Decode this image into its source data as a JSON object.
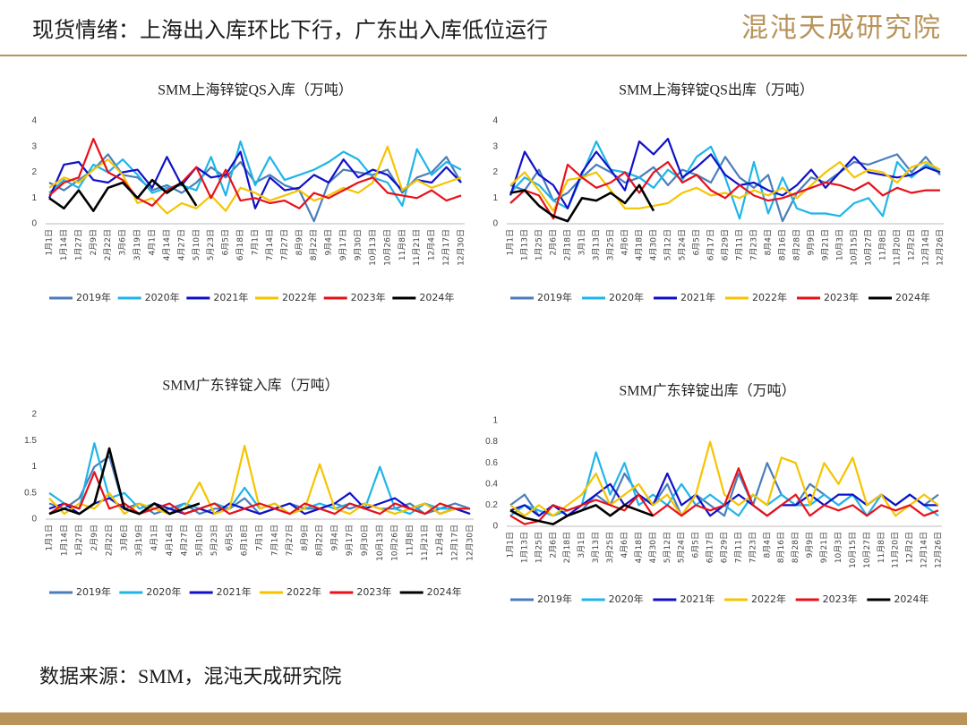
{
  "header": {
    "title": "现货情绪：上海出入库环比下行，广东出入库低位运行",
    "logo": "混沌天成研究院"
  },
  "source": "数据来源：SMM，混沌天成研究院",
  "chart_data": [
    {
      "type": "line",
      "title": "SMM上海锌锭QS入库（万吨）",
      "categories": [
        "1月1日",
        "1月14日",
        "1月27日",
        "2月9日",
        "2月22日",
        "3月6日",
        "3月19日",
        "4月1日",
        "4月14日",
        "4月27日",
        "5月10日",
        "5月23日",
        "6月5日",
        "6月18日",
        "7月1日",
        "7月14日",
        "7月27日",
        "8月9日",
        "8月22日",
        "9月4日",
        "9月17日",
        "9月30日",
        "10月13日",
        "10月26日",
        "11月8日",
        "11月21日",
        "12月4日",
        "12月17日",
        "12月30日"
      ],
      "ylim": [
        0,
        4
      ],
      "yticks": [
        0,
        1,
        2,
        3,
        4
      ],
      "series": [
        {
          "name": "2019年",
          "color": "#4a7ebb",
          "values": [
            1.6,
            1.3,
            1.7,
            2.1,
            2.7,
            1.9,
            1.8,
            1.3,
            1.5,
            1.2,
            1.6,
            2.2,
            1.8,
            2.4,
            1.6,
            1.9,
            1.5,
            1.3,
            0.1,
            1.6,
            2.1,
            2.0,
            1.9,
            2.1,
            1.2,
            1.8,
            2.0,
            2.6,
            1.6
          ]
        },
        {
          "name": "2020年",
          "color": "#1fb5e8",
          "values": [
            1.2,
            1.7,
            1.4,
            2.3,
            2.0,
            2.5,
            1.9,
            1.2,
            1.4,
            1.5,
            1.3,
            2.6,
            1.1,
            3.2,
            1.5,
            2.6,
            1.7,
            1.9,
            2.1,
            2.4,
            2.8,
            2.5,
            1.8,
            1.6,
            0.7,
            2.9,
            1.9,
            2.4,
            2.1
          ]
        },
        {
          "name": "2021年",
          "color": "#1010c8",
          "values": [
            1.0,
            2.3,
            2.4,
            1.7,
            1.6,
            2.0,
            2.1,
            1.4,
            2.6,
            1.5,
            2.2,
            1.8,
            1.9,
            2.8,
            0.6,
            1.8,
            1.3,
            1.4,
            1.9,
            1.6,
            2.5,
            1.8,
            2.1,
            1.9,
            1.3,
            1.7,
            1.6,
            2.2,
            1.6
          ]
        },
        {
          "name": "2022年",
          "color": "#f5c400",
          "values": [
            1.4,
            1.8,
            1.6,
            2.1,
            2.5,
            1.9,
            0.8,
            1.0,
            0.4,
            0.8,
            0.6,
            1.1,
            0.5,
            1.4,
            1.2,
            0.9,
            1.1,
            1.3,
            0.9,
            1.1,
            1.4,
            1.2,
            1.6,
            3.0,
            1.3,
            1.7,
            1.4,
            1.6,
            1.8
          ]
        },
        {
          "name": "2023年",
          "color": "#e8101a",
          "values": [
            1.1,
            1.6,
            1.8,
            3.3,
            2.0,
            1.7,
            1.0,
            0.7,
            1.3,
            1.6,
            2.2,
            1.0,
            2.1,
            0.9,
            1.0,
            0.8,
            0.9,
            0.6,
            1.2,
            1.0,
            1.3,
            1.6,
            1.8,
            1.2,
            1.1,
            1.0,
            1.3,
            0.9,
            1.1
          ]
        },
        {
          "name": "2024年",
          "color": "#000000",
          "values": [
            1.0,
            0.6,
            1.3,
            0.5,
            1.4,
            1.6,
            1.0,
            1.7,
            1.2,
            1.6,
            0.7,
            null,
            null,
            null,
            null,
            null,
            null,
            null,
            null,
            null,
            null,
            null,
            null,
            null,
            null,
            null,
            null,
            null,
            null
          ]
        }
      ]
    },
    {
      "type": "line",
      "title": "SMM上海锌锭QS出库（万吨）",
      "categories": [
        "1月1日",
        "1月13日",
        "1月25日",
        "2月6日",
        "2月18日",
        "3月1日",
        "3月13日",
        "3月25日",
        "4月6日",
        "4月18日",
        "4月30日",
        "5月12日",
        "5月24日",
        "6月5日",
        "6月17日",
        "6月29日",
        "7月11日",
        "7月23日",
        "8月4日",
        "8月16日",
        "8月28日",
        "9月9日",
        "9月21日",
        "10月3日",
        "10月15日",
        "10月27日",
        "11月8日",
        "11月20日",
        "12月2日",
        "12月14日",
        "12月26日"
      ],
      "ylim": [
        0,
        4
      ],
      "yticks": [
        0,
        1,
        2,
        3,
        4
      ],
      "series": [
        {
          "name": "2019年",
          "color": "#4a7ebb",
          "values": [
            1.5,
            1.3,
            2.1,
            0.9,
            1.2,
            1.8,
            2.3,
            2.0,
            1.6,
            1.8,
            2.2,
            1.5,
            2.1,
            1.9,
            1.6,
            2.6,
            1.8,
            1.4,
            1.9,
            0.1,
            1.2,
            1.8,
            1.6,
            2.0,
            2.4,
            2.3,
            2.5,
            2.7,
            2.0,
            2.6,
            1.9
          ]
        },
        {
          "name": "2020年",
          "color": "#1fb5e8",
          "values": [
            1.2,
            1.8,
            1.5,
            0.9,
            0.6,
            1.9,
            3.2,
            2.1,
            2.0,
            1.8,
            1.4,
            2.1,
            1.7,
            2.6,
            3.0,
            1.8,
            0.2,
            2.4,
            0.4,
            1.8,
            0.6,
            0.4,
            0.4,
            0.3,
            0.8,
            1.0,
            0.3,
            2.4,
            1.8,
            2.3,
            2.0
          ]
        },
        {
          "name": "2021年",
          "color": "#1010c8",
          "values": [
            1.1,
            2.8,
            1.9,
            1.5,
            0.6,
            2.0,
            2.8,
            2.1,
            1.3,
            3.2,
            2.7,
            3.3,
            1.8,
            2.2,
            2.7,
            1.9,
            1.5,
            1.6,
            1.3,
            1.1,
            1.5,
            2.1,
            1.4,
            2.0,
            2.6,
            2.0,
            1.9,
            1.8,
            1.9,
            2.2,
            2.0
          ]
        },
        {
          "name": "2022年",
          "color": "#f5c400",
          "values": [
            1.5,
            2.0,
            1.3,
            0.5,
            1.7,
            1.8,
            2.0,
            1.3,
            0.6,
            0.6,
            0.7,
            0.8,
            1.2,
            1.4,
            1.1,
            1.2,
            1.0,
            1.3,
            1.1,
            1.4,
            1.0,
            1.5,
            2.0,
            2.4,
            1.8,
            2.1,
            2.0,
            1.6,
            2.2,
            2.4,
            2.1
          ]
        },
        {
          "name": "2023年",
          "color": "#e8101a",
          "values": [
            0.8,
            1.3,
            1.1,
            0.2,
            2.3,
            1.8,
            1.4,
            1.6,
            2.0,
            1.2,
            2.0,
            2.4,
            1.6,
            1.9,
            1.3,
            1.0,
            1.5,
            1.1,
            0.9,
            1.0,
            1.2,
            1.4,
            1.6,
            1.5,
            1.3,
            1.6,
            1.1,
            1.4,
            1.2,
            1.3,
            1.3
          ]
        },
        {
          "name": "2024年",
          "color": "#000000",
          "values": [
            1.2,
            1.3,
            0.7,
            0.3,
            0.1,
            1.0,
            0.9,
            1.2,
            0.8,
            1.5,
            0.5,
            null,
            null,
            null,
            null,
            null,
            null,
            null,
            null,
            null,
            null,
            null,
            null,
            null,
            null,
            null,
            null,
            null,
            null,
            null,
            null
          ]
        }
      ]
    },
    {
      "type": "line",
      "title": "SMM广东锌锭入库（万吨）",
      "categories": [
        "1月1日",
        "1月14日",
        "1月27日",
        "2月9日",
        "2月22日",
        "3月6日",
        "3月19日",
        "4月1日",
        "4月14日",
        "4月27日",
        "5月10日",
        "5月23日",
        "6月5日",
        "6月18日",
        "7月1日",
        "7月14日",
        "7月27日",
        "8月9日",
        "8月22日",
        "9月4日",
        "9月17日",
        "9月30日",
        "10月13日",
        "10月26日",
        "11月8日",
        "11月21日",
        "12月4日",
        "12月17日",
        "12月30日"
      ],
      "ylim": [
        0,
        2
      ],
      "yticks": [
        0,
        0.5,
        1,
        1.5,
        2
      ],
      "series": [
        {
          "name": "2019年",
          "color": "#4a7ebb",
          "values": [
            0.3,
            0.2,
            0.4,
            1.0,
            1.2,
            0.2,
            0.3,
            0.1,
            0.2,
            0.3,
            0.1,
            0.2,
            0.2,
            0.4,
            0.1,
            0.2,
            0.3,
            0.2,
            0.2,
            0.3,
            0.2,
            0.3,
            0.2,
            0.2,
            0.3,
            0.1,
            0.2,
            0.3,
            0.2
          ]
        },
        {
          "name": "2020年",
          "color": "#1fb5e8",
          "values": [
            0.5,
            0.3,
            0.2,
            1.45,
            0.4,
            0.5,
            0.2,
            0.3,
            0.1,
            0.3,
            0.2,
            0.3,
            0.2,
            0.6,
            0.2,
            0.3,
            0.1,
            0.2,
            0.3,
            0.2,
            0.3,
            0.2,
            1.0,
            0.2,
            0.1,
            0.3,
            0.2,
            0.2,
            0.1
          ]
        },
        {
          "name": "2021年",
          "color": "#1010c8",
          "values": [
            0.2,
            0.3,
            0.1,
            0.3,
            0.4,
            0.2,
            0.1,
            0.3,
            0.2,
            0.1,
            0.2,
            0.1,
            0.3,
            0.2,
            0.1,
            0.2,
            0.3,
            0.1,
            0.2,
            0.3,
            0.5,
            0.2,
            0.3,
            0.4,
            0.2,
            0.3,
            0.1,
            0.2,
            0.1
          ]
        },
        {
          "name": "2022年",
          "color": "#f5c400",
          "values": [
            0.4,
            0.1,
            0.3,
            0.2,
            0.5,
            0.1,
            0.3,
            0.2,
            0.1,
            0.2,
            0.7,
            0.1,
            0.2,
            1.4,
            0.2,
            0.3,
            0.1,
            0.2,
            1.05,
            0.2,
            0.1,
            0.3,
            0.2,
            0.1,
            0.2,
            0.3,
            0.1,
            0.2,
            0.2
          ]
        },
        {
          "name": "2023年",
          "color": "#e8101a",
          "values": [
            0.1,
            0.3,
            0.2,
            0.9,
            0.2,
            0.3,
            0.1,
            0.2,
            0.3,
            0.1,
            0.2,
            0.3,
            0.1,
            0.2,
            0.3,
            0.2,
            0.1,
            0.3,
            0.2,
            0.1,
            0.3,
            0.2,
            0.1,
            0.3,
            0.2,
            0.1,
            0.3,
            0.2,
            0.2
          ]
        },
        {
          "name": "2024年",
          "color": "#000000",
          "values": [
            0.1,
            0.2,
            0.1,
            0.3,
            1.35,
            0.2,
            0.1,
            0.3,
            0.1,
            0.2,
            0.3,
            null,
            null,
            null,
            null,
            null,
            null,
            null,
            null,
            null,
            null,
            null,
            null,
            null,
            null,
            null,
            null,
            null,
            null
          ]
        }
      ]
    },
    {
      "type": "line",
      "title": "SMM广东锌锭出库（万吨）",
      "categories": [
        "1月1日",
        "1月13日",
        "1月25日",
        "2月6日",
        "2月18日",
        "3月1日",
        "3月13日",
        "3月25日",
        "4月6日",
        "4月18日",
        "4月30日",
        "5月12日",
        "5月24日",
        "6月5日",
        "6月17日",
        "6月29日",
        "7月11日",
        "7月23日",
        "8月4日",
        "8月16日",
        "8月28日",
        "9月9日",
        "9月21日",
        "10月3日",
        "10月15日",
        "10月27日",
        "11月8日",
        "11月20日",
        "12月2日",
        "12月14日",
        "12月26日"
      ],
      "ylim": [
        0,
        1
      ],
      "yticks": [
        0,
        0.2,
        0.4,
        0.6,
        0.8,
        1
      ],
      "series": [
        {
          "name": "2019年",
          "color": "#4a7ebb",
          "values": [
            0.2,
            0.3,
            0.1,
            0.2,
            0.1,
            0.15,
            0.3,
            0.2,
            0.5,
            0.3,
            0.2,
            0.4,
            0.1,
            0.3,
            0.2,
            0.1,
            0.5,
            0.2,
            0.6,
            0.3,
            0.2,
            0.4,
            0.3,
            0.2,
            0.3,
            0.2,
            0.3,
            0.2,
            0.3,
            0.2,
            0.3
          ]
        },
        {
          "name": "2020年",
          "color": "#1fb5e8",
          "values": [
            0.1,
            0.2,
            0.15,
            0.1,
            0.15,
            0.2,
            0.7,
            0.3,
            0.6,
            0.2,
            0.3,
            0.2,
            0.4,
            0.2,
            0.3,
            0.2,
            0.1,
            0.3,
            0.2,
            0.3,
            0.2,
            0.2,
            0.3,
            0.2,
            0.3,
            0.1,
            0.3,
            0.2,
            0.3,
            0.2,
            0.1
          ]
        },
        {
          "name": "2021年",
          "color": "#1010c8",
          "values": [
            0.15,
            0.2,
            0.1,
            0.2,
            0.1,
            0.2,
            0.3,
            0.4,
            0.2,
            0.3,
            0.2,
            0.5,
            0.2,
            0.3,
            0.1,
            0.2,
            0.3,
            0.2,
            0.1,
            0.2,
            0.2,
            0.3,
            0.2,
            0.3,
            0.3,
            0.2,
            0.3,
            0.2,
            0.3,
            0.2,
            0.2
          ]
        },
        {
          "name": "2022年",
          "color": "#f5c400",
          "values": [
            0.2,
            0.1,
            0.2,
            0.1,
            0.2,
            0.3,
            0.5,
            0.2,
            0.3,
            0.4,
            0.2,
            0.3,
            0.1,
            0.3,
            0.8,
            0.3,
            0.2,
            0.3,
            0.2,
            0.65,
            0.6,
            0.2,
            0.6,
            0.4,
            0.65,
            0.2,
            0.3,
            0.1,
            0.2,
            0.3,
            0.2
          ]
        },
        {
          "name": "2023年",
          "color": "#e8101a",
          "values": [
            0.1,
            0.02,
            0.05,
            0.2,
            0.15,
            0.2,
            0.25,
            0.2,
            0.15,
            0.3,
            0.1,
            0.2,
            0.1,
            0.2,
            0.15,
            0.2,
            0.55,
            0.2,
            0.1,
            0.2,
            0.3,
            0.1,
            0.2,
            0.15,
            0.2,
            0.1,
            0.2,
            0.15,
            0.2,
            0.1,
            0.15
          ]
        },
        {
          "name": "2024年",
          "color": "#000000",
          "values": [
            0.15,
            0.08,
            0.05,
            0.02,
            0.1,
            0.15,
            0.2,
            0.1,
            0.2,
            0.15,
            0.1,
            null,
            null,
            null,
            null,
            null,
            null,
            null,
            null,
            null,
            null,
            null,
            null,
            null,
            null,
            null,
            null,
            null,
            null,
            null,
            null
          ]
        }
      ]
    }
  ]
}
